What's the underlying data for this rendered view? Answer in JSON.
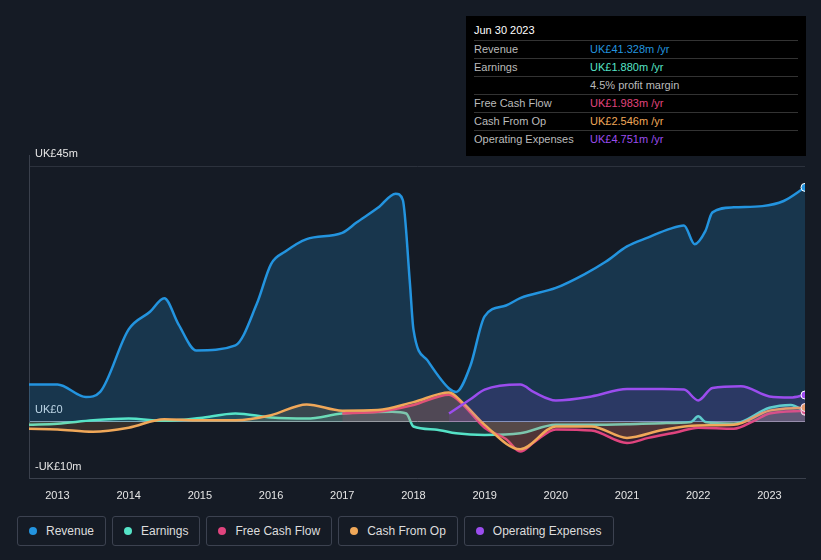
{
  "chart_data": {
    "type": "line",
    "info_box": {
      "title": "Jun 30 2023",
      "rows": [
        {
          "label": "Revenue",
          "value": "UK£41.328m /yr",
          "color": "#2394df"
        },
        {
          "label": "Earnings",
          "value": "UK£1.880m /yr",
          "color": "#55e3c7"
        },
        {
          "label": "",
          "value": "4.5% profit margin",
          "color": "#bbbbbb"
        },
        {
          "label": "Free Cash Flow",
          "value": "UK£1.983m /yr",
          "color": "#e0447e"
        },
        {
          "label": "Cash From Op",
          "value": "UK£2.546m /yr",
          "color": "#f0a859"
        },
        {
          "label": "Operating Expenses",
          "value": "UK£4.751m /yr",
          "color": "#9b4dee"
        }
      ]
    },
    "xlim": [
      2012.6,
      2023.5
    ],
    "xticks": [
      2013,
      2014,
      2015,
      2016,
      2017,
      2018,
      2019,
      2020,
      2021,
      2022,
      2023
    ],
    "ylim": [
      -10,
      47
    ],
    "yticks": [
      {
        "value": -10,
        "label": "-UK£10m"
      },
      {
        "value": 0,
        "label": "UK£0"
      },
      {
        "value": 45,
        "label": "UK£45m"
      }
    ],
    "grid": true,
    "legend": "bottom",
    "series": [
      {
        "name": "Revenue",
        "color": "#2394df",
        "x": [
          2012.6,
          2013.0,
          2013.4,
          2013.6,
          2014.0,
          2014.3,
          2014.5,
          2014.7,
          2014.95,
          2015.5,
          2015.8,
          2016.0,
          2016.2,
          2016.5,
          2017.0,
          2017.2,
          2017.5,
          2017.75,
          2017.85,
          2017.95,
          2018.0,
          2018.2,
          2018.5,
          2018.6,
          2018.8,
          2019.0,
          2019.3,
          2019.5,
          2020.0,
          2020.4,
          2020.7,
          2021.0,
          2021.3,
          2021.6,
          2021.8,
          2021.95,
          2022.1,
          2022.2,
          2022.5,
          2022.9,
          2023.2,
          2023.5
        ],
        "values": [
          6.6,
          6.6,
          4.4,
          5.3,
          16.3,
          19.4,
          21.8,
          17.2,
          12.6,
          13.5,
          20.8,
          27.8,
          30.0,
          32.2,
          33.3,
          35.1,
          37.7,
          40.2,
          39.1,
          24.5,
          16.3,
          10.8,
          5.9,
          5.3,
          9.9,
          18.6,
          20.5,
          21.8,
          23.6,
          26.0,
          28.2,
          30.9,
          32.5,
          34.0,
          34.6,
          31.3,
          33.6,
          36.9,
          37.8,
          38.0,
          38.9,
          41.3
        ]
      },
      {
        "name": "Earnings",
        "color": "#55e3c7",
        "x": [
          2012.6,
          2013.0,
          2013.5,
          2014.0,
          2014.5,
          2015.0,
          2015.5,
          2016.0,
          2016.5,
          2017.0,
          2017.7,
          2017.9,
          2018.0,
          2018.3,
          2018.6,
          2019.0,
          2019.5,
          2020.0,
          2020.5,
          2021.0,
          2021.5,
          2021.9,
          2022.0,
          2022.1,
          2022.5,
          2023.0,
          2023.3,
          2023.5
        ],
        "values": [
          -0.5,
          -0.3,
          0.3,
          0.6,
          0.2,
          0.7,
          1.5,
          0.8,
          0.6,
          1.5,
          1.8,
          1.5,
          -0.8,
          -1.3,
          -2.0,
          -2.3,
          -2.0,
          -0.5,
          -0.5,
          -0.4,
          -0.2,
          0.0,
          1.0,
          0.0,
          -0.3,
          2.5,
          3.0,
          1.88
        ]
      },
      {
        "name": "Free Cash Flow",
        "color": "#e0447e",
        "x": [
          2017.0,
          2017.5,
          2018.0,
          2018.5,
          2018.7,
          2019.0,
          2019.3,
          2019.5,
          2019.7,
          2020.0,
          2020.5,
          2021.0,
          2021.3,
          2021.7,
          2022.0,
          2022.5,
          2022.8,
          2023.0,
          2023.5
        ],
        "values": [
          1.5,
          1.8,
          3.0,
          4.8,
          3.0,
          -1.0,
          -3.0,
          -5.2,
          -3.5,
          -1.3,
          -1.5,
          -3.7,
          -2.8,
          -1.8,
          -1.0,
          -1.2,
          0.3,
          1.5,
          1.98
        ]
      },
      {
        "name": "Cash From Op",
        "color": "#f0a859",
        "x": [
          2012.6,
          2013.0,
          2013.5,
          2014.0,
          2014.5,
          2015.0,
          2015.5,
          2016.0,
          2016.5,
          2017.0,
          2017.5,
          2018.0,
          2018.5,
          2018.7,
          2019.0,
          2019.5,
          2020.0,
          2020.5,
          2021.0,
          2021.5,
          2022.0,
          2022.5,
          2023.0,
          2023.5
        ],
        "values": [
          -1.2,
          -1.3,
          -1.7,
          -1.0,
          0.5,
          0.3,
          0.3,
          1.2,
          3.1,
          2.0,
          2.1,
          3.5,
          5.2,
          3.3,
          -0.5,
          -4.8,
          -0.8,
          -0.8,
          -2.8,
          -1.4,
          -0.6,
          -0.5,
          2.0,
          2.55
        ]
      },
      {
        "name": "Operating Expenses",
        "color": "#9b4dee",
        "x": [
          2018.5,
          2018.8,
          2019.0,
          2019.5,
          2019.7,
          2020.0,
          2020.5,
          2021.0,
          2021.5,
          2021.8,
          2022.0,
          2022.2,
          2022.6,
          2023.0,
          2023.3,
          2023.5
        ],
        "values": [
          1.5,
          4.0,
          5.7,
          6.6,
          5.2,
          3.8,
          4.5,
          5.8,
          5.8,
          5.7,
          3.8,
          6.0,
          6.3,
          4.5,
          4.3,
          4.75
        ]
      }
    ]
  }
}
